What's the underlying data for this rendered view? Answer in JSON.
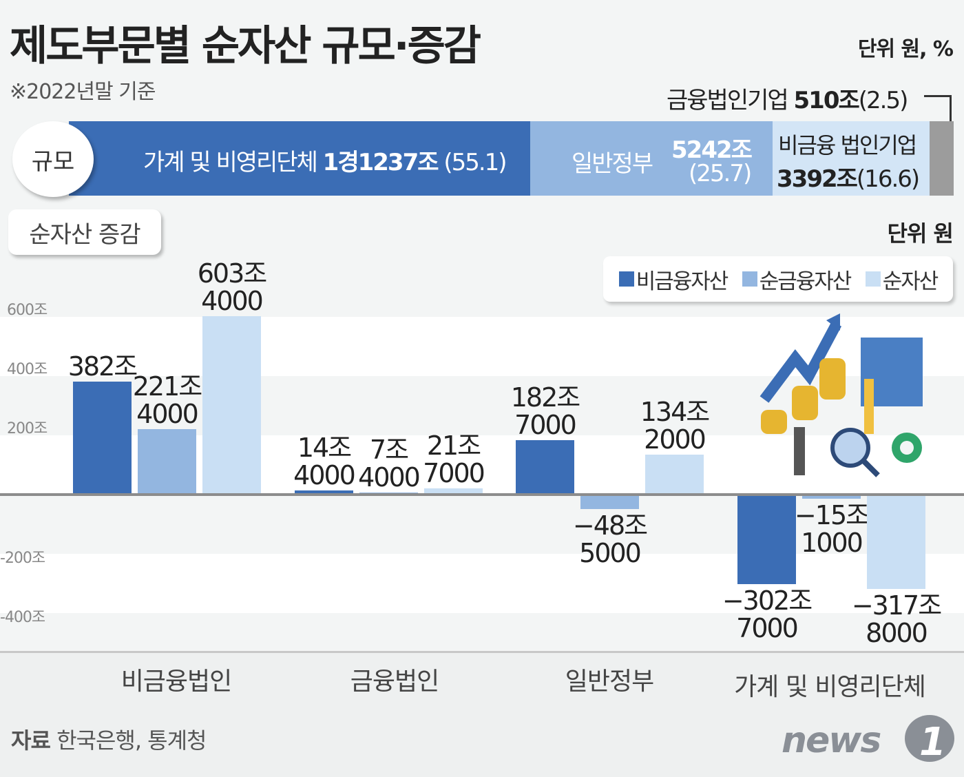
{
  "title": "제도부문별 순자산 규모·증감",
  "basis": "※2022년말 기준",
  "unit_top": "단위 원, %",
  "scale": {
    "badge": "규모",
    "segments": [
      {
        "name": "가계 및 비영리단체",
        "value": "1경1237조",
        "share": "(55.1)",
        "share_pct": 55.1,
        "color": "#3b6db5"
      },
      {
        "name": "일반정부",
        "value": "5242조",
        "share": "(25.7)",
        "share_pct": 25.7,
        "color": "#93b6e0"
      },
      {
        "name": "비금융 법인기업",
        "value": "3392조",
        "share": "(16.6)",
        "share_pct": 16.6,
        "color": "#d3e5f6"
      },
      {
        "name": "금융법인기업",
        "value": "510조",
        "share": "(2.5)",
        "share_pct": 2.5,
        "color": "#9c9c9c"
      }
    ]
  },
  "change_badge": "순자산 증감",
  "unit_chart": "단위 원",
  "source": {
    "label": "자료",
    "text": "한국은행, 통계청"
  },
  "logo": "news1",
  "chart_data": {
    "type": "bar",
    "categories": [
      "비금융법인",
      "금융법인",
      "일반정부",
      "가계 및 비영리단체"
    ],
    "ylim": [
      -400,
      600
    ],
    "yticks": [
      "600조",
      "400조",
      "200조",
      "-200조",
      "-400조"
    ],
    "ytick_values": [
      600,
      400,
      200,
      -200,
      -400
    ],
    "legend_position": "top-right",
    "series": [
      {
        "name": "비금융자산",
        "color": "#3b6db5",
        "values": [
          382,
          14.4,
          182.7,
          -302.7
        ],
        "labels": [
          [
            "382조",
            ""
          ],
          [
            "14조",
            "4000"
          ],
          [
            "182조",
            "7000"
          ],
          [
            "−302조",
            "7000"
          ]
        ]
      },
      {
        "name": "순금융자산",
        "color": "#93b6e0",
        "values": [
          221.4,
          7.4,
          -48.5,
          -15.1
        ],
        "labels": [
          [
            "221조",
            "4000"
          ],
          [
            "7조",
            "4000"
          ],
          [
            "−48조",
            "5000"
          ],
          [
            "−15조",
            "1000"
          ]
        ]
      },
      {
        "name": "순자산",
        "color": "#c9dff4",
        "values": [
          603.4,
          21.7,
          134.2,
          -317.8
        ],
        "labels": [
          [
            "603조",
            "4000"
          ],
          [
            "21조",
            "7000"
          ],
          [
            "134조",
            "2000"
          ],
          [
            "−317조",
            "8000"
          ]
        ]
      }
    ]
  }
}
